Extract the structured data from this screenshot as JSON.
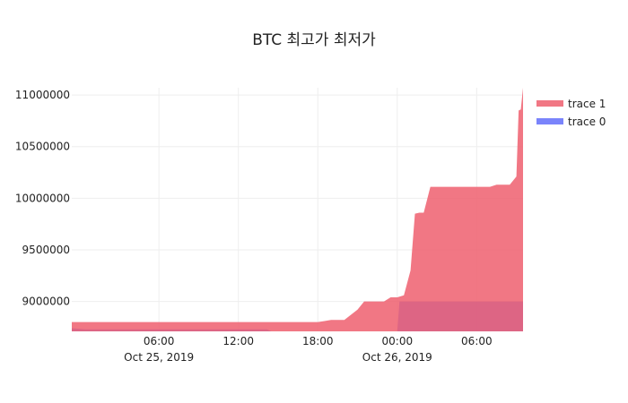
{
  "chart_data": {
    "type": "area",
    "title": "BTC 최고가 최저가",
    "xlabel": "",
    "ylabel": "",
    "x_ticks": [
      {
        "t": "2019-10-25T06:00",
        "label": "06:00",
        "date_label": "Oct 25, 2019"
      },
      {
        "t": "2019-10-25T12:00",
        "label": "12:00",
        "date_label": ""
      },
      {
        "t": "2019-10-25T18:00",
        "label": "18:00",
        "date_label": ""
      },
      {
        "t": "2019-10-26T00:00",
        "label": "00:00",
        "date_label": "Oct 26, 2019"
      },
      {
        "t": "2019-10-26T06:00",
        "label": "06:00",
        "date_label": ""
      }
    ],
    "y_ticks": [
      9000000,
      9500000,
      10000000,
      10500000,
      11000000
    ],
    "y_tick_labels": [
      "9000000",
      "9500000",
      "10000000",
      "10500000",
      "11000000"
    ],
    "xlim": [
      "2019-10-24T23:25",
      "2019-10-26T09:30"
    ],
    "ylim": [
      8710000,
      11070000
    ],
    "grid": true,
    "legend_position": "top-right",
    "series": [
      {
        "name": "trace 0",
        "color": "#636efa",
        "x": [
          "2019-10-24T23:25",
          "2019-10-25T00:30",
          "2019-10-25T06:00",
          "2019-10-25T12:00",
          "2019-10-25T14:10",
          "2019-10-25T14:30",
          "2019-10-26T00:00",
          "2019-10-26T00:10",
          "2019-10-26T09:30"
        ],
        "y": [
          8740000,
          8730000,
          8730000,
          8730000,
          8730000,
          8710000,
          8710000,
          9000000,
          9000000
        ]
      },
      {
        "name": "trace 1",
        "color": "#ef5f6f",
        "x": [
          "2019-10-24T23:25",
          "2019-10-25T18:00",
          "2019-10-25T18:30",
          "2019-10-25T19:00",
          "2019-10-25T19:30",
          "2019-10-25T20:00",
          "2019-10-25T21:00",
          "2019-10-25T21:30",
          "2019-10-25T22:00",
          "2019-10-25T23:00",
          "2019-10-25T23:30",
          "2019-10-26T00:00",
          "2019-10-26T00:30",
          "2019-10-26T01:00",
          "2019-10-26T01:20",
          "2019-10-26T01:40",
          "2019-10-26T02:00",
          "2019-10-26T02:30",
          "2019-10-26T04:00",
          "2019-10-26T05:00",
          "2019-10-26T06:00",
          "2019-10-26T07:00",
          "2019-10-26T07:30",
          "2019-10-26T08:00",
          "2019-10-26T08:30",
          "2019-10-26T09:00",
          "2019-10-26T09:10",
          "2019-10-26T09:20",
          "2019-10-26T09:30"
        ],
        "y": [
          8800000,
          8800000,
          8810000,
          8820000,
          8820000,
          8820000,
          8920000,
          9000000,
          9000000,
          9000000,
          9040000,
          9040000,
          9060000,
          9300000,
          9850000,
          9860000,
          9860000,
          10110000,
          10110000,
          10110000,
          10110000,
          10110000,
          10130000,
          10130000,
          10130000,
          10210000,
          10850000,
          10860000,
          11070000
        ]
      }
    ]
  }
}
